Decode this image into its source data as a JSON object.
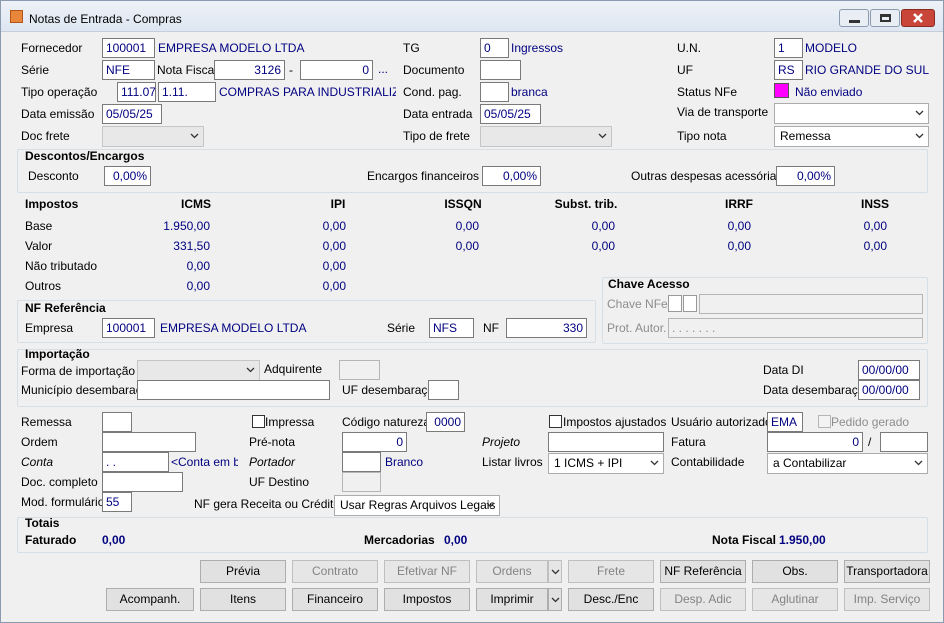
{
  "window": {
    "title": "Notas de Entrada - Compras"
  },
  "header": {
    "fornecedor_label": "Fornecedor",
    "fornecedor_code": "100001",
    "fornecedor_name": "EMPRESA MODELO LTDA",
    "tg_label": "TG",
    "tg_value": "0",
    "tg_desc": "Ingressos",
    "un_label": "U.N.",
    "un_value": "1",
    "un_desc": "MODELO",
    "serie_label": "Série",
    "serie_value": "NFE",
    "nf_label": "Nota Fiscal",
    "nf_number": "3126",
    "nf_dash": "-",
    "nf_sub": "0",
    "nf_more": "...",
    "documento_label": "Documento",
    "uf_label": "UF",
    "uf_value": "RS",
    "uf_desc": "RIO GRANDE DO SUL",
    "tipo_op_label": "Tipo operação",
    "tipo_op_code": "111.07",
    "tipo_op_cfop": "1.11.",
    "tipo_op_desc": "COMPRAS PARA INDUSTRIALIZACAO",
    "cond_pag_label": "Cond. pag.",
    "cond_pag_desc": "branca",
    "status_label": "Status NFe",
    "status_value": "Não enviado",
    "data_emissao_label": "Data emissão",
    "data_emissao": "05/05/25",
    "data_entrada_label": "Data entrada",
    "data_entrada": "05/05/25",
    "via_label": "Via de transporte",
    "doc_frete_label": "Doc frete",
    "tipo_frete_label": "Tipo de frete",
    "tipo_nota_label": "Tipo nota",
    "tipo_nota": "Remessa"
  },
  "descontos": {
    "title": "Descontos/Encargos",
    "desconto_label": "Desconto",
    "desconto": "0,00%",
    "encargos_label": "Encargos financeiros",
    "encargos": "0,00%",
    "outras_label": "Outras despesas acessórias",
    "outras": "0,00%"
  },
  "impostos": {
    "title": "Impostos",
    "columns": [
      "ICMS",
      "IPI",
      "ISSQN",
      "Subst. trib.",
      "IRRF",
      "INSS"
    ],
    "rows": [
      {
        "label": "Base",
        "values": [
          "1.950,00",
          "0,00",
          "0,00",
          "0,00",
          "0,00",
          "0,00"
        ]
      },
      {
        "label": "Valor",
        "values": [
          "331,50",
          "0,00",
          "0,00",
          "0,00",
          "0,00",
          "0,00"
        ]
      },
      {
        "label": "Não tributado",
        "values": [
          "0,00",
          "0,00"
        ]
      },
      {
        "label": "Outros",
        "values": [
          "0,00",
          "0,00"
        ]
      }
    ]
  },
  "nf_ref": {
    "title": "NF Referência",
    "empresa_label": "Empresa",
    "empresa_code": "100001",
    "empresa_name": "EMPRESA MODELO LTDA",
    "serie_label": "Série",
    "serie": "NFS",
    "nf_label": "NF",
    "nf": "330"
  },
  "chave": {
    "title": "Chave Acesso",
    "chave_label": "Chave NFe",
    "prot_label": "Prot. Autor.",
    "prot_mask": ".   .   .   .   .   .   ."
  },
  "importacao": {
    "title": "Importação",
    "forma_label": "Forma de importação",
    "adquirente_label": "Adquirente",
    "data_di_label": "Data DI",
    "data_di": "00/00/00",
    "municipio_label": "Município desembaraço",
    "uf_label": "UF desembaraço",
    "data_desemb_label": "Data desembaraço",
    "data_desemb": "00/00/00"
  },
  "detalhes": {
    "remessa_label": "Remessa",
    "impressa_label": "Impressa",
    "codigo_natureza_label": "Código natureza",
    "codigo_natureza": "0000",
    "impostos_ajustados_label": "Impostos ajustados",
    "usuario_label": "Usuário autorizado",
    "usuario": "EMA",
    "pedido_label": "Pedido gerado",
    "ordem_label": "Ordem",
    "pre_nota_label": "Pré-nota",
    "pre_nota": "0",
    "projeto_label": "Projeto",
    "fatura_label": "Fatura",
    "fatura": "0",
    "fatura_sep": "/",
    "conta_label": "Conta",
    "conta": ". .",
    "conta_desc": "<Conta em branco>",
    "portador_label": "Portador",
    "portador_desc": "Branco",
    "livros_label": "Listar livros",
    "livros": "1 ICMS + IPI",
    "contabilidade_label": "Contabilidade",
    "contabilidade": "a Contabilizar",
    "doc_completo_label": "Doc. completo",
    "uf_destino_label": "UF Destino",
    "mod_label": "Mod. formulário",
    "mod": "55",
    "receita_label": "NF gera Receita ou Crédito",
    "receita": "Usar Regras Arquivos Legais"
  },
  "totais": {
    "title": "Totais",
    "faturado_label": "Faturado",
    "faturado": "0,00",
    "mercadorias_label": "Mercadorias",
    "mercadorias": "0,00",
    "nota_label": "Nota Fiscal",
    "nota": "1.950,00"
  },
  "buttons": {
    "row1": [
      {
        "label": "Prévia",
        "enabled": true
      },
      {
        "label": "Contrato",
        "enabled": false
      },
      {
        "label": "Efetivar NF",
        "enabled": false
      },
      {
        "label": "Ordens",
        "enabled": false
      },
      {
        "label": "Frete",
        "enabled": false
      },
      {
        "label": "NF Referência",
        "enabled": true
      },
      {
        "label": "Obs.",
        "enabled": true
      },
      {
        "label": "Transportadora",
        "enabled": true
      }
    ],
    "row2": [
      {
        "label": "Acompanh.",
        "enabled": true
      },
      {
        "label": "Itens",
        "enabled": true
      },
      {
        "label": "Financeiro",
        "enabled": true
      },
      {
        "label": "Impostos",
        "enabled": true
      },
      {
        "label": "Imprimir",
        "enabled": true
      },
      {
        "label": "Desc./Enc",
        "enabled": true
      },
      {
        "label": "Desp. Adic",
        "enabled": false
      },
      {
        "label": "Aglutinar",
        "enabled": false
      },
      {
        "label": "Imp. Serviço",
        "enabled": false
      }
    ]
  }
}
